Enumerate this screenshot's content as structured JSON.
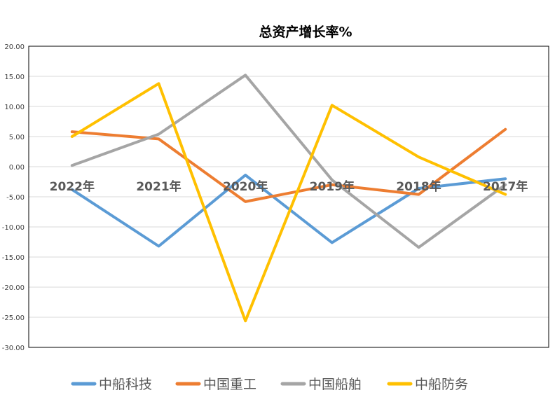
{
  "chart_data": {
    "type": "line",
    "title": "总资产增长率%",
    "categories": [
      "2022年",
      "2021年",
      "2020年",
      "2019年",
      "2018年",
      "2017年"
    ],
    "ylim": [
      -30,
      20
    ],
    "yticks": [
      "20.00",
      "15.00",
      "10.00",
      "5.00",
      "0.00",
      "-5.00",
      "-10.00",
      "-15.00",
      "-20.00",
      "-25.00",
      "-30.00"
    ],
    "ytick_values": [
      20,
      15,
      10,
      5,
      0,
      -5,
      -10,
      -15,
      -20,
      -25,
      -30
    ],
    "grid": true,
    "legend_position": "bottom",
    "series": [
      {
        "name": "中船科技",
        "color": "#5B9BD5",
        "values": [
          -3.8,
          -13.2,
          -1.4,
          -12.6,
          -3.6,
          -2.0
        ]
      },
      {
        "name": "中国重工",
        "color": "#ED7D31",
        "values": [
          5.8,
          4.6,
          -5.8,
          -3.0,
          -4.6,
          6.2
        ]
      },
      {
        "name": "中国船舶",
        "color": "#A5A5A5",
        "values": [
          0.2,
          5.4,
          15.2,
          -2.2,
          -13.4,
          -3.0
        ]
      },
      {
        "name": "中船防务",
        "color": "#FFC000",
        "values": [
          5.0,
          13.8,
          -25.6,
          10.2,
          1.6,
          -4.6
        ]
      }
    ]
  }
}
